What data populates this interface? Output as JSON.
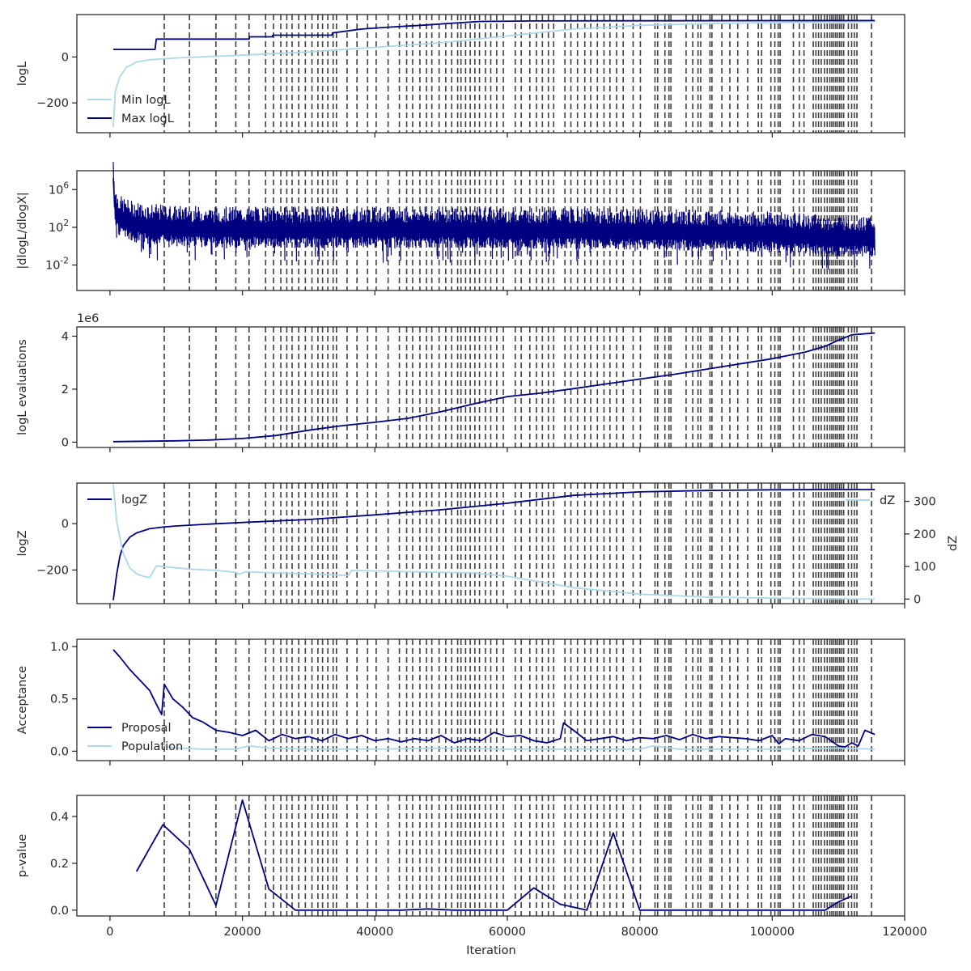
{
  "colors": {
    "dark": "#000080",
    "light": "#add8e6",
    "vline": "#404040",
    "axes": "#262626"
  },
  "xlabel": "Iteration",
  "xticks": [
    0,
    20000,
    40000,
    60000,
    80000,
    100000,
    120000
  ],
  "xlim": [
    -5000,
    120000
  ],
  "vlines": [
    8200,
    12000,
    16000,
    19000,
    21000,
    23500,
    24700,
    25800,
    26700,
    27500,
    28500,
    29500,
    30500,
    31400,
    32100,
    32900,
    33700,
    34200,
    35800,
    37300,
    38900,
    40200,
    42000,
    43700,
    44800,
    45700,
    46800,
    47800,
    48600,
    49700,
    50700,
    51600,
    52500,
    53000,
    53700,
    54400,
    55100,
    55800,
    56700,
    57500,
    58400,
    59400,
    61200,
    62100,
    63400,
    64400,
    65300,
    66200,
    67000,
    68700,
    69600,
    70600,
    71700,
    72600,
    73600,
    74600,
    75500,
    76500,
    77500,
    79000,
    80100,
    82300,
    82700,
    83800,
    84400,
    84700,
    87000,
    88000,
    88800,
    89200,
    90600,
    90900,
    92400,
    93600,
    94800,
    96300,
    97900,
    98400,
    99800,
    100400,
    100900,
    101200,
    103200,
    104100,
    104800,
    106200,
    106600,
    107000,
    107400,
    107900,
    108300,
    108700,
    109000,
    109300,
    109600,
    109900,
    110200,
    110500,
    110800,
    111500,
    112000,
    112400,
    112800,
    115000
  ],
  "chart_data": [
    {
      "type": "line",
      "ylabel": "logL",
      "yticks": [
        0,
        -200
      ],
      "ytick_labels": [
        "0",
        "−200"
      ],
      "ylim": [
        -330,
        185
      ],
      "legend": "lower-left",
      "series": [
        {
          "name": "Min logL",
          "color_key": "light",
          "x": [
            500,
            800,
            1500,
            2500,
            4000,
            6000,
            10000,
            20000,
            30000,
            40000,
            50000,
            60000,
            70000,
            80000,
            90000,
            100000,
            110000,
            115500
          ],
          "y": [
            -305,
            -150,
            -85,
            -45,
            -22,
            -12,
            -4,
            8,
            22,
            42,
            62,
            92,
            122,
            138,
            145,
            150,
            153,
            155
          ]
        },
        {
          "name": "Max logL",
          "color_key": "dark",
          "x": [
            500,
            6800,
            7000,
            21000,
            21100,
            24500,
            24600,
            33500,
            33600,
            38000,
            42000,
            47000,
            52000,
            56000,
            64000,
            75000,
            115500
          ],
          "y": [
            33,
            33,
            78,
            78,
            88,
            88,
            95,
            95,
            105,
            122,
            130,
            138,
            148,
            155,
            157,
            158,
            159
          ]
        }
      ]
    },
    {
      "type": "line",
      "ylabel": "|dlogL/dlogX|",
      "yscale": "log",
      "yticks": [
        1000000,
        100,
        0.01
      ],
      "ytick_labels": [
        "10^6",
        "10^2",
        "10^-2"
      ],
      "ylim_log10": [
        -4.7,
        8.0
      ],
      "series": [
        {
          "name": "",
          "color_key": "dark",
          "x": [
            500,
            700,
            1000,
            1500,
            2000,
            3000,
            5000,
            8000,
            15000,
            30000,
            50000,
            70000,
            90000,
            100000,
            110000,
            115500
          ],
          "y_log10": [
            7.2,
            4.2,
            3.3,
            2.8,
            2.6,
            2.3,
            2.0,
            1.8,
            1.6,
            1.6,
            1.6,
            1.5,
            1.3,
            1.1,
            0.7,
            0.7
          ],
          "band_log10": [
            0.6,
            2.6
          ]
        }
      ]
    },
    {
      "type": "line",
      "ylabel": "logL evaluations",
      "offset_label": "1e6",
      "yticks": [
        0,
        2,
        4
      ],
      "ytick_labels": [
        "0",
        "2",
        "4"
      ],
      "ylim": [
        -0.2,
        4.35
      ],
      "series": [
        {
          "name": "",
          "color_key": "dark",
          "x": [
            500,
            10000,
            15000,
            20000,
            25000,
            30000,
            35000,
            40000,
            45000,
            50000,
            55000,
            60000,
            65000,
            70000,
            75000,
            80000,
            85000,
            90000,
            95000,
            100000,
            105000,
            108000,
            110000,
            112000,
            115500
          ],
          "y": [
            0.02,
            0.05,
            0.08,
            0.14,
            0.25,
            0.45,
            0.62,
            0.75,
            0.9,
            1.15,
            1.45,
            1.72,
            1.85,
            2.02,
            2.2,
            2.38,
            2.55,
            2.75,
            2.95,
            3.15,
            3.4,
            3.62,
            3.85,
            4.05,
            4.12
          ]
        }
      ]
    },
    {
      "type": "line",
      "ylabel": "logZ",
      "yticks": [
        0,
        -200
      ],
      "ytick_labels": [
        "0",
        "−200"
      ],
      "ylim": [
        -345,
        175
      ],
      "y2label": "dZ",
      "y2ticks": [
        0,
        100,
        200,
        300
      ],
      "y2tick_labels": [
        "0",
        "100",
        "200",
        "300"
      ],
      "y2lim": [
        -14,
        356
      ],
      "legend": "upper-left",
      "legend_right": "upper-right",
      "series": [
        {
          "name": "logZ",
          "color_key": "dark",
          "axis": "left",
          "x": [
            500,
            1000,
            1500,
            2000,
            3000,
            4000,
            6000,
            8000,
            10000,
            15000,
            20000,
            30000,
            40000,
            50000,
            60000,
            70000,
            80000,
            90000,
            100000,
            110000,
            115500
          ],
          "y": [
            -330,
            -220,
            -140,
            -95,
            -58,
            -40,
            -22,
            -15,
            -10,
            -2,
            5,
            18,
            38,
            60,
            88,
            122,
            137,
            143,
            146,
            147,
            147
          ]
        },
        {
          "name": "dZ",
          "color_key": "light",
          "axis": "right",
          "x": [
            500,
            1000,
            2000,
            3000,
            4000,
            5000,
            6000,
            7000,
            8000,
            12000,
            16000,
            19000,
            19500,
            20500,
            25000,
            30000,
            36000,
            36500,
            45000,
            55000,
            60000,
            70000,
            80000,
            90000,
            100000,
            110000,
            115500
          ],
          "y": [
            352,
            240,
            140,
            95,
            78,
            70,
            66,
            102,
            100,
            92,
            88,
            82,
            76,
            84,
            80,
            78,
            72,
            88,
            84,
            80,
            70,
            35,
            15,
            6,
            3,
            1,
            0
          ]
        }
      ]
    },
    {
      "type": "line",
      "ylabel": "Acceptance",
      "yticks": [
        0.0,
        0.5,
        1.0
      ],
      "ytick_labels": [
        "0.0",
        "0.5",
        "1.0"
      ],
      "ylim": [
        -0.09,
        1.07
      ],
      "legend": "lower-left",
      "series": [
        {
          "name": "Proposal",
          "color_key": "dark",
          "x": [
            500,
            1500,
            3000,
            4500,
            6000,
            7000,
            7800,
            8200,
            9500,
            11000,
            12500,
            14000,
            16000,
            18000,
            20000,
            22000,
            24000,
            26000,
            28000,
            30000,
            32000,
            34000,
            36000,
            38000,
            40000,
            42000,
            44000,
            46000,
            48000,
            50000,
            52000,
            54000,
            56000,
            58000,
            60000,
            62000,
            64000,
            66000,
            68000,
            68500,
            70000,
            72000,
            74000,
            76000,
            78000,
            80000,
            82000,
            84000,
            86000,
            88000,
            90000,
            92000,
            94000,
            96000,
            98000,
            100000,
            101000,
            102000,
            104000,
            106000,
            108000,
            110000,
            111000,
            112000,
            113000,
            114000,
            115500
          ],
          "y": [
            0.97,
            0.9,
            0.78,
            0.68,
            0.58,
            0.45,
            0.35,
            0.64,
            0.5,
            0.42,
            0.32,
            0.28,
            0.2,
            0.18,
            0.15,
            0.2,
            0.1,
            0.16,
            0.12,
            0.14,
            0.1,
            0.16,
            0.12,
            0.15,
            0.1,
            0.12,
            0.09,
            0.12,
            0.1,
            0.15,
            0.08,
            0.12,
            0.1,
            0.18,
            0.14,
            0.15,
            0.1,
            0.08,
            0.12,
            0.27,
            0.2,
            0.1,
            0.12,
            0.14,
            0.1,
            0.13,
            0.12,
            0.15,
            0.11,
            0.16,
            0.12,
            0.14,
            0.13,
            0.12,
            0.1,
            0.15,
            0.07,
            0.12,
            0.1,
            0.16,
            0.14,
            0.05,
            0.04,
            0.08,
            0.05,
            0.2,
            0.16
          ]
        },
        {
          "name": "Population",
          "color_key": "light",
          "x": [
            8200,
            10000,
            14000,
            19000,
            21000,
            24000,
            30000,
            40000,
            50000,
            60000,
            70000,
            80000,
            82000,
            86000,
            100000,
            110000,
            115500
          ],
          "y": [
            0.05,
            0.03,
            0.02,
            0.02,
            0.05,
            0.03,
            0.02,
            0.02,
            0.03,
            0.02,
            0.02,
            0.02,
            0.05,
            0.02,
            0.02,
            0.03,
            0.02
          ]
        }
      ]
    },
    {
      "type": "line",
      "ylabel": "p-value",
      "yticks": [
        0.0,
        0.2,
        0.4
      ],
      "ytick_labels": [
        "0.0",
        "0.2",
        "0.4"
      ],
      "ylim": [
        -0.025,
        0.49
      ],
      "series": [
        {
          "name": "",
          "color_key": "dark",
          "x": [
            4000,
            8000,
            12000,
            16000,
            20000,
            24000,
            28000,
            32000,
            36000,
            40000,
            44000,
            48000,
            52000,
            56000,
            60000,
            64000,
            68000,
            72000,
            76000,
            80000,
            84000,
            88000,
            92000,
            96000,
            100000,
            104000,
            108000,
            110000,
            112000
          ],
          "y": [
            0.165,
            0.365,
            0.26,
            0.02,
            0.47,
            0.09,
            0.0,
            0.0,
            0.0,
            0.0,
            0.0,
            0.005,
            0.0,
            0.0,
            0.0,
            0.095,
            0.025,
            0.0,
            0.33,
            0.0,
            0.0,
            0.0,
            0.0,
            0.0,
            0.0,
            0.0,
            0.0,
            0.035,
            0.06
          ]
        }
      ]
    }
  ]
}
